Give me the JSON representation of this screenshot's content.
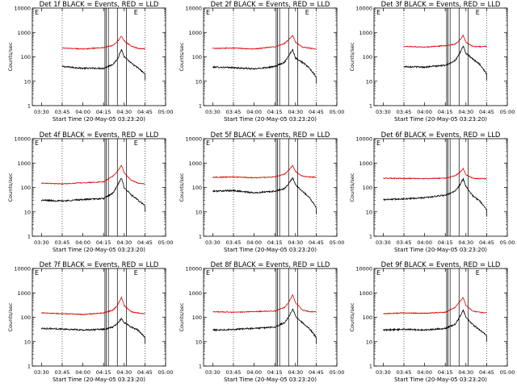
{
  "figure": {
    "ticks_x": [
      "03:30",
      "03:45",
      "04:00",
      "04:15",
      "04:30",
      "04:45",
      "05:00"
    ],
    "ticks_y": [
      "1",
      "10",
      "100",
      "1000",
      "10000"
    ]
  },
  "colors": {
    "events": "#000000",
    "lld": "#dd0000",
    "axis": "#000000"
  },
  "chart_data": [
    {
      "type": "line",
      "title": "Det 1f BLACK = Events, RED = LLD",
      "xlabel": "Start Time (20-May-05 03:23:20)",
      "ylabel": "Counts/sec",
      "y_scale": "log",
      "xlim": [
        "03:23:20",
        "05:00"
      ],
      "ylim": [
        1,
        10000
      ],
      "x_ticks": [
        "03:30",
        "03:45",
        "04:00",
        "04:15",
        "04:30",
        "04:45",
        "05:00"
      ],
      "y_ticks": [
        1,
        10,
        100,
        1000,
        10000
      ],
      "grid": false,
      "x": [
        "03:45",
        "04:00",
        "04:15",
        "04:22",
        "04:25",
        "04:28",
        "04:30",
        "04:35",
        "04:40",
        "04:45"
      ],
      "series": [
        {
          "name": "Events",
          "color": "#000000",
          "values": [
            40,
            34,
            34,
            50,
            80,
            200,
            100,
            55,
            35,
            20
          ]
        },
        {
          "name": "LLD",
          "color": "#dd0000",
          "values": [
            230,
            210,
            240,
            300,
            420,
            700,
            450,
            280,
            220,
            210
          ]
        }
      ],
      "markers": [
        "E",
        "E"
      ]
    },
    {
      "type": "line",
      "title": "Det 2f BLACK = Events, RED = LLD",
      "xlabel": "Start Time (20-May-05 03:23:20)",
      "ylabel": "Counts/sec",
      "y_scale": "log",
      "xlim": [
        "03:23:20",
        "05:00"
      ],
      "ylim": [
        1,
        10000
      ],
      "x_ticks": [
        "03:30",
        "03:45",
        "04:00",
        "04:15",
        "04:30",
        "04:45",
        "05:00"
      ],
      "y_ticks": [
        1,
        10,
        100,
        1000,
        10000
      ],
      "grid": false,
      "x": [
        "03:30",
        "03:45",
        "04:00",
        "04:15",
        "04:22",
        "04:25",
        "04:28",
        "04:30",
        "04:35",
        "04:40",
        "04:45"
      ],
      "series": [
        {
          "name": "Events",
          "color": "#000000",
          "values": [
            38,
            36,
            32,
            40,
            60,
            110,
            200,
            90,
            60,
            35,
            15
          ]
        },
        {
          "name": "LLD",
          "color": "#dd0000",
          "values": [
            220,
            230,
            210,
            260,
            350,
            500,
            750,
            400,
            250,
            230,
            210
          ]
        }
      ],
      "markers": [
        "E",
        "E"
      ]
    },
    {
      "type": "line",
      "title": "Det 3f BLACK = Events, RED = LLD",
      "xlabel": "Start Time (20-May-05 03:23:20)",
      "ylabel": "Counts/sec",
      "y_scale": "log",
      "xlim": [
        "03:23:20",
        "05:00"
      ],
      "ylim": [
        1,
        10000
      ],
      "x_ticks": [
        "03:30",
        "03:45",
        "04:00",
        "04:15",
        "04:30",
        "04:45",
        "05:00"
      ],
      "y_ticks": [
        1,
        10,
        100,
        1000,
        10000
      ],
      "grid": false,
      "x": [
        "03:45",
        "04:00",
        "04:15",
        "04:22",
        "04:25",
        "04:28",
        "04:30",
        "04:35",
        "04:40",
        "04:45"
      ],
      "series": [
        {
          "name": "Events",
          "color": "#000000",
          "values": [
            40,
            38,
            45,
            70,
            120,
            280,
            140,
            80,
            50,
            20
          ]
        },
        {
          "name": "LLD",
          "color": "#dd0000",
          "values": [
            270,
            250,
            290,
            330,
            450,
            750,
            400,
            270,
            260,
            270
          ]
        }
      ],
      "markers": [
        "E",
        "E"
      ]
    },
    {
      "type": "line",
      "title": "Det 4f BLACK = Events, RED = LLD",
      "xlabel": "Start Time (20-May-05 03:23:20)",
      "ylabel": "Counts/sec",
      "y_scale": "log",
      "xlim": [
        "03:23:20",
        "05:00"
      ],
      "ylim": [
        1,
        10000
      ],
      "x_ticks": [
        "03:30",
        "03:45",
        "04:00",
        "04:15",
        "04:30",
        "04:45",
        "05:00"
      ],
      "y_ticks": [
        1,
        10,
        100,
        1000,
        10000
      ],
      "grid": false,
      "x": [
        "03:30",
        "03:45",
        "04:00",
        "04:15",
        "04:22",
        "04:25",
        "04:28",
        "04:30",
        "04:35",
        "04:40",
        "04:45"
      ],
      "series": [
        {
          "name": "Events",
          "color": "#000000",
          "values": [
            30,
            28,
            32,
            35,
            60,
            120,
            240,
            100,
            50,
            30,
            18
          ]
        },
        {
          "name": "LLD",
          "color": "#dd0000",
          "values": [
            150,
            140,
            155,
            170,
            300,
            450,
            800,
            400,
            200,
            150,
            140
          ]
        }
      ],
      "markers": [
        "E",
        "E"
      ]
    },
    {
      "type": "line",
      "title": "Det 5f BLACK = Events, RED = LLD",
      "xlabel": "Start Time (20-May-05 03:23:20)",
      "ylabel": "Counts/sec",
      "y_scale": "log",
      "xlim": [
        "03:23:20",
        "05:00"
      ],
      "ylim": [
        1,
        10000
      ],
      "x_ticks": [
        "03:30",
        "03:45",
        "04:00",
        "04:15",
        "04:30",
        "04:45",
        "05:00"
      ],
      "y_ticks": [
        1,
        10,
        100,
        1000,
        10000
      ],
      "grid": false,
      "x": [
        "03:30",
        "03:45",
        "04:00",
        "04:15",
        "04:22",
        "04:25",
        "04:28",
        "04:30",
        "04:35",
        "04:40",
        "04:45"
      ],
      "series": [
        {
          "name": "Events",
          "color": "#000000",
          "values": [
            70,
            75,
            60,
            70,
            90,
            140,
            250,
            130,
            70,
            40,
            15
          ]
        },
        {
          "name": "LLD",
          "color": "#dd0000",
          "values": [
            260,
            270,
            250,
            270,
            350,
            500,
            800,
            450,
            290,
            270,
            260
          ]
        }
      ],
      "markers": [
        "E"
      ]
    },
    {
      "type": "line",
      "title": "Det 6f BLACK = Events, RED = LLD",
      "xlabel": "Start Time (20-May-05 03:23:20)",
      "ylabel": "Counts/sec",
      "y_scale": "log",
      "xlim": [
        "03:23:20",
        "05:00"
      ],
      "ylim": [
        1,
        10000
      ],
      "x_ticks": [
        "03:30",
        "03:45",
        "04:00",
        "04:15",
        "04:30",
        "04:45",
        "05:00"
      ],
      "y_ticks": [
        1,
        10,
        100,
        1000,
        10000
      ],
      "grid": false,
      "x": [
        "03:30",
        "03:45",
        "04:00",
        "04:15",
        "04:22",
        "04:25",
        "04:28",
        "04:30",
        "04:35",
        "04:40",
        "04:45"
      ],
      "series": [
        {
          "name": "Events",
          "color": "#000000",
          "values": [
            32,
            34,
            38,
            48,
            70,
            110,
            230,
            110,
            45,
            28,
            12
          ]
        },
        {
          "name": "LLD",
          "color": "#dd0000",
          "values": [
            240,
            235,
            230,
            240,
            300,
            380,
            600,
            330,
            240,
            230,
            230
          ]
        }
      ],
      "markers": [
        "E"
      ]
    },
    {
      "type": "line",
      "title": "Det 7f BLACK = Events, RED = LLD",
      "xlabel": "Start Time (20-May-05 03:23:20)",
      "ylabel": "Counts/sec",
      "y_scale": "log",
      "xlim": [
        "03:23:20",
        "05:00"
      ],
      "ylim": [
        1,
        10000
      ],
      "x_ticks": [
        "03:30",
        "03:45",
        "04:00",
        "04:15",
        "04:30",
        "04:45",
        "05:00"
      ],
      "y_ticks": [
        1,
        10,
        100,
        1000,
        10000
      ],
      "grid": false,
      "x": [
        "03:30",
        "03:45",
        "04:00",
        "04:15",
        "04:22",
        "04:25",
        "04:28",
        "04:30",
        "04:35",
        "04:40",
        "04:45"
      ],
      "series": [
        {
          "name": "Events",
          "color": "#000000",
          "values": [
            35,
            33,
            30,
            32,
            40,
            55,
            90,
            60,
            40,
            30,
            15
          ]
        },
        {
          "name": "LLD",
          "color": "#dd0000",
          "values": [
            150,
            140,
            130,
            150,
            200,
            300,
            650,
            300,
            170,
            150,
            140
          ]
        }
      ],
      "markers": [
        "E",
        "E"
      ]
    },
    {
      "type": "line",
      "title": "Det 8f BLACK = Events, RED = LLD",
      "xlabel": "Start Time (20-May-05 03:23:20)",
      "ylabel": "Counts/sec",
      "y_scale": "log",
      "xlim": [
        "03:23:20",
        "05:00"
      ],
      "ylim": [
        1,
        10000
      ],
      "x_ticks": [
        "03:30",
        "03:45",
        "04:00",
        "04:15",
        "04:30",
        "04:45",
        "05:00"
      ],
      "y_ticks": [
        1,
        10,
        100,
        1000,
        10000
      ],
      "grid": false,
      "x": [
        "03:30",
        "03:45",
        "04:00",
        "04:15",
        "04:22",
        "04:25",
        "04:28",
        "04:30",
        "04:35",
        "04:40",
        "04:45"
      ],
      "series": [
        {
          "name": "Events",
          "color": "#000000",
          "values": [
            30,
            32,
            35,
            40,
            60,
            100,
            220,
            110,
            60,
            35,
            15
          ]
        },
        {
          "name": "LLD",
          "color": "#dd0000",
          "values": [
            170,
            160,
            170,
            180,
            250,
            400,
            850,
            400,
            200,
            170,
            165
          ]
        }
      ],
      "markers": [
        "E"
      ]
    },
    {
      "type": "line",
      "title": "Det 9f BLACK = Events, RED = LLD",
      "xlabel": "Start Time (20-May-05 03:23:20)",
      "ylabel": "Counts/sec",
      "y_scale": "log",
      "xlim": [
        "03:23:20",
        "05:00"
      ],
      "ylim": [
        1,
        10000
      ],
      "x_ticks": [
        "03:30",
        "03:45",
        "04:00",
        "04:15",
        "04:30",
        "04:45",
        "05:00"
      ],
      "y_ticks": [
        1,
        10,
        100,
        1000,
        10000
      ],
      "grid": false,
      "x": [
        "03:30",
        "03:45",
        "04:00",
        "04:15",
        "04:22",
        "04:25",
        "04:28",
        "04:30",
        "04:35",
        "04:40",
        "04:45"
      ],
      "series": [
        {
          "name": "Events",
          "color": "#000000",
          "values": [
            30,
            32,
            30,
            35,
            50,
            90,
            200,
            100,
            50,
            30,
            18
          ]
        },
        {
          "name": "LLD",
          "color": "#dd0000",
          "values": [
            140,
            150,
            145,
            160,
            250,
            400,
            650,
            300,
            180,
            160,
            150
          ]
        }
      ],
      "markers": [
        "E",
        "E"
      ]
    }
  ]
}
